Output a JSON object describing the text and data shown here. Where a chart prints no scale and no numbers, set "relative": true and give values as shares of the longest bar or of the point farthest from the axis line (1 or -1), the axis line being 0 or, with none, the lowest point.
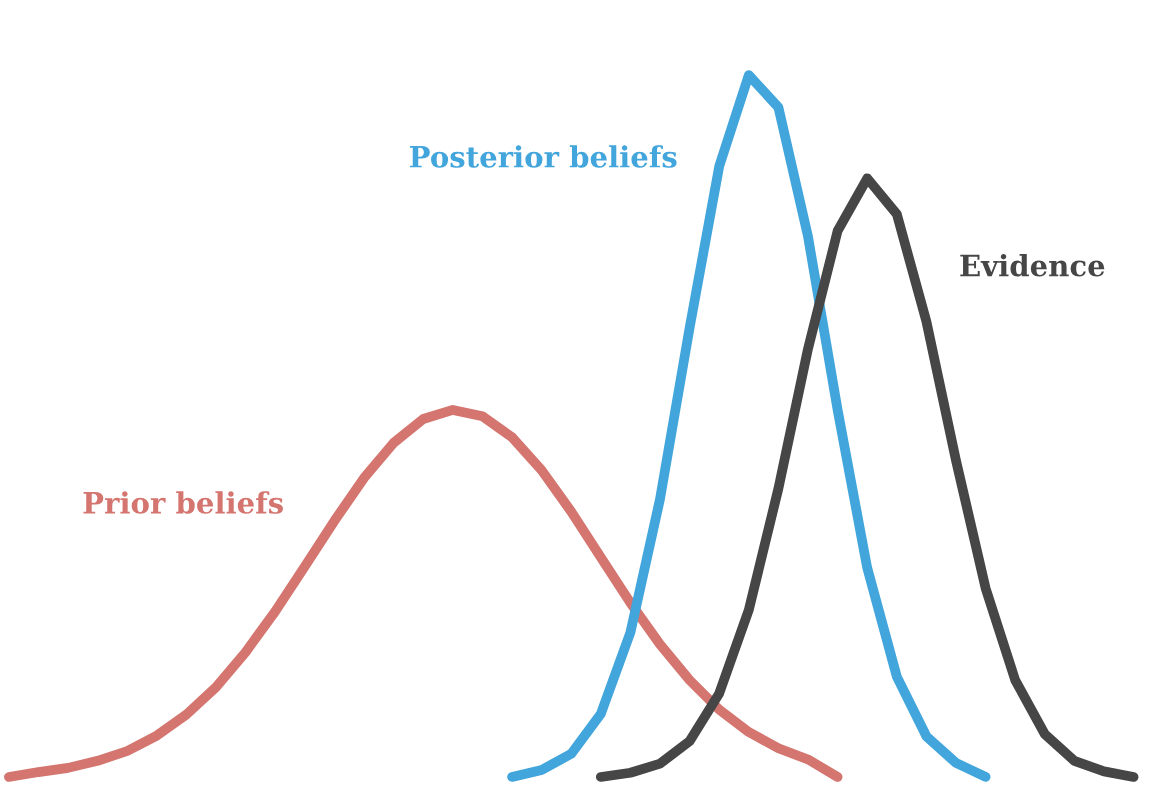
{
  "chart_data": {
    "type": "line",
    "relative": true,
    "legend": false,
    "marker": "none",
    "line_style": "solid",
    "categories": [
      null,
      null,
      null,
      null,
      null,
      null,
      null,
      null,
      null,
      null,
      null,
      null,
      null,
      null,
      null,
      null,
      null,
      null,
      null,
      null,
      null,
      null,
      null,
      null,
      null,
      null,
      null,
      null,
      null,
      null,
      null,
      null,
      null,
      null,
      null,
      null,
      null,
      null,
      null
    ],
    "series": [
      {
        "name": "Prior beliefs",
        "color": "#d4756f",
        "values": [
          0,
          0.007,
          0.013,
          0.023,
          0.037,
          0.059,
          0.089,
          0.128,
          0.178,
          0.236,
          0.3,
          0.365,
          0.426,
          0.476,
          0.51,
          0.523,
          0.514,
          0.484,
          0.437,
          0.378,
          0.313,
          0.248,
          0.189,
          0.138,
          0.096,
          0.064,
          0.041,
          0.025,
          0,
          null,
          null,
          null,
          null,
          null,
          null,
          null,
          null,
          null,
          null
        ]
      },
      {
        "name": "Posterior beliefs",
        "color": "#42a5dc",
        "values": [
          null,
          null,
          null,
          null,
          null,
          null,
          null,
          null,
          null,
          null,
          null,
          null,
          null,
          null,
          null,
          null,
          null,
          0,
          0.01,
          0.033,
          0.09,
          0.206,
          0.396,
          0.64,
          0.87,
          1.0,
          0.954,
          0.77,
          0.523,
          0.298,
          0.143,
          0.058,
          0.02,
          0,
          null,
          null,
          null,
          null,
          null
        ]
      },
      {
        "name": "Evidence",
        "color": "#464646",
        "values": [
          null,
          null,
          null,
          null,
          null,
          null,
          null,
          null,
          null,
          null,
          null,
          null,
          null,
          null,
          null,
          null,
          null,
          null,
          null,
          null,
          0,
          0.006,
          0.019,
          0.051,
          0.119,
          0.238,
          0.411,
          0.61,
          0.778,
          0.853,
          0.802,
          0.649,
          0.451,
          0.269,
          0.138,
          0.061,
          0.023,
          0.008,
          0
        ]
      }
    ]
  }
}
